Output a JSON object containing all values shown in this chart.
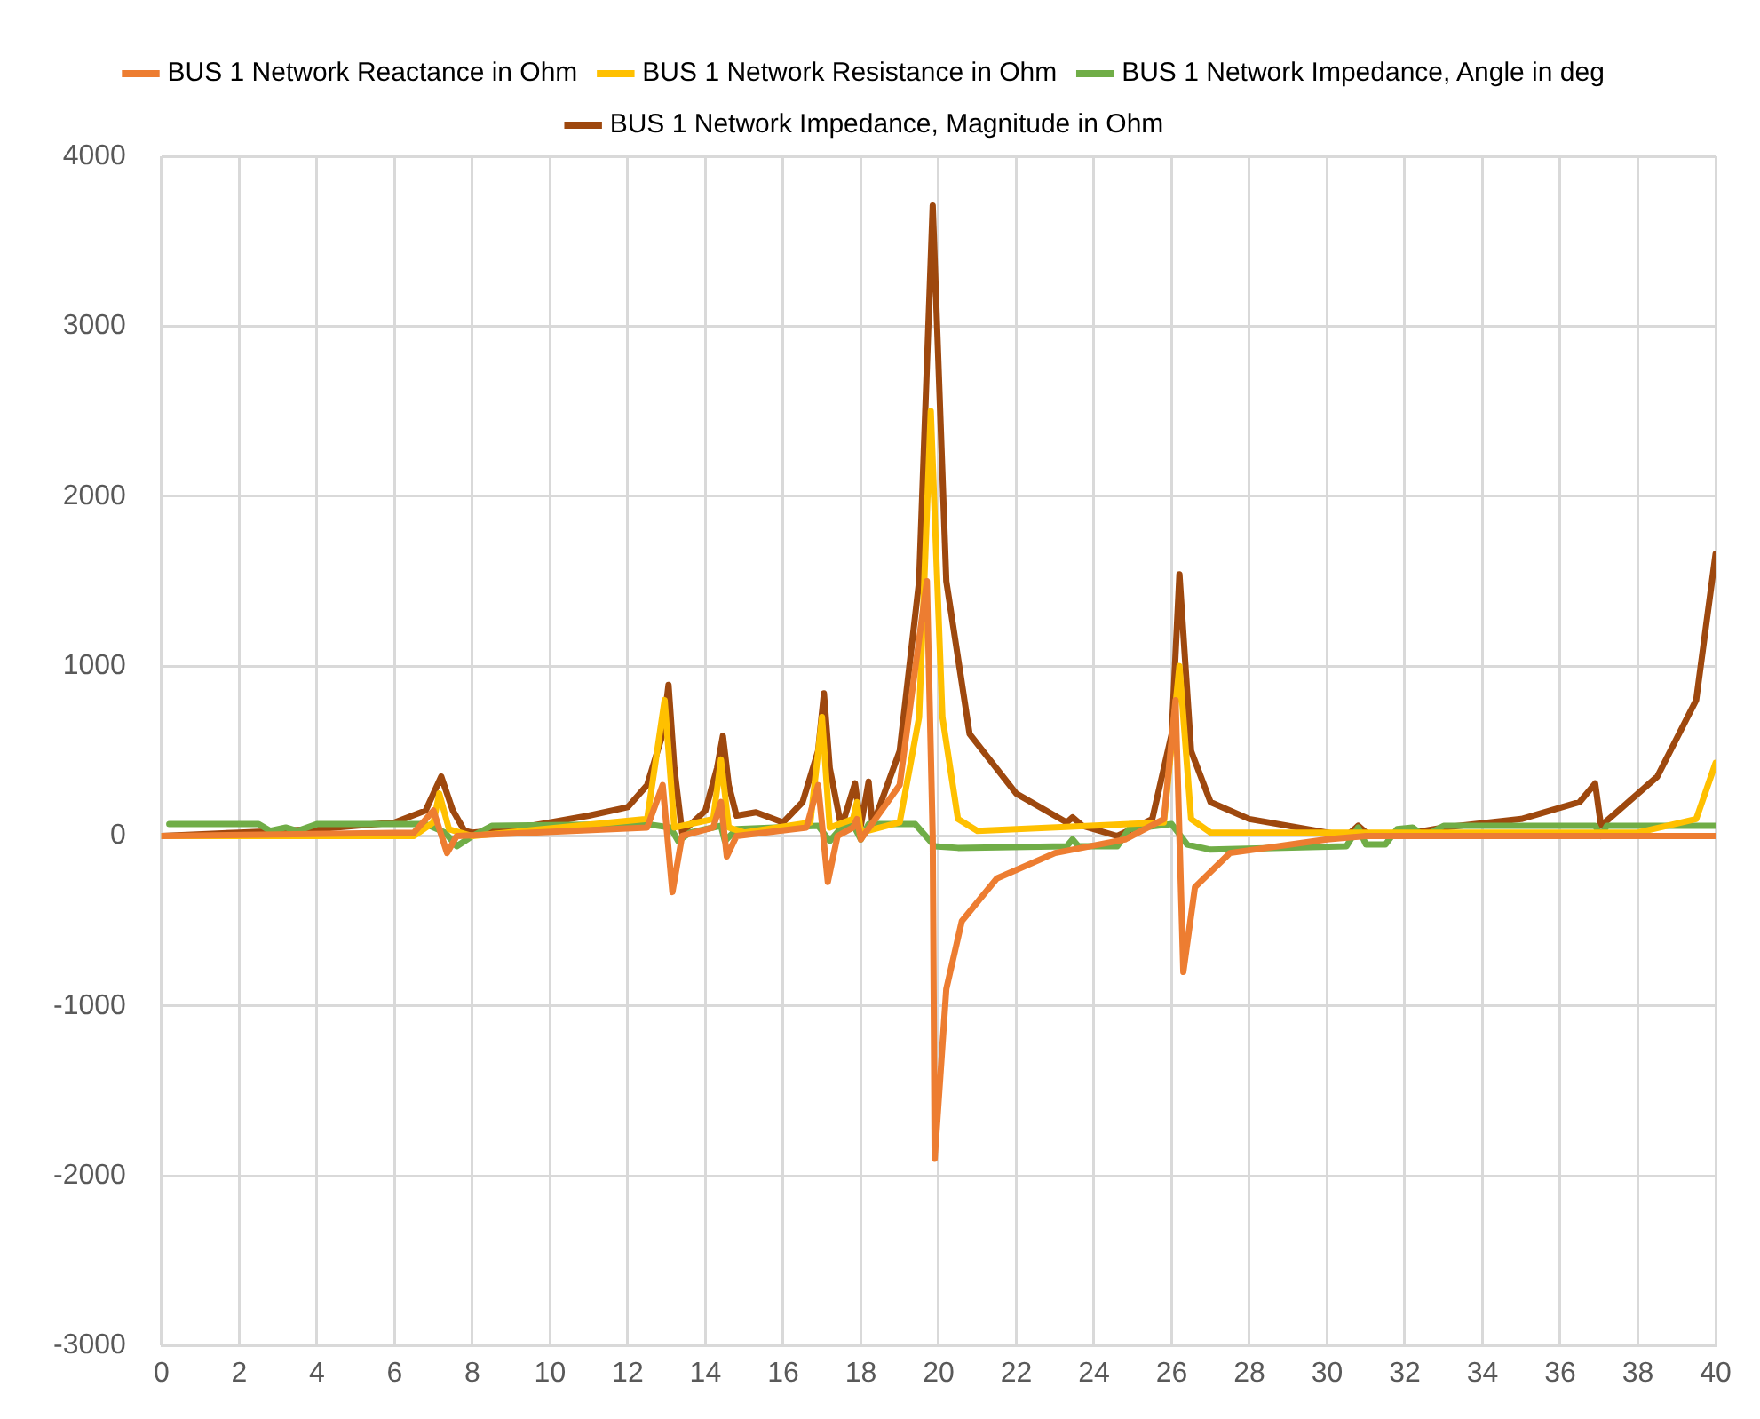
{
  "chart_data": {
    "type": "line",
    "xlim": [
      0,
      40
    ],
    "xticks": [
      0,
      2,
      4,
      6,
      8,
      10,
      12,
      14,
      16,
      18,
      20,
      22,
      24,
      26,
      28,
      30,
      32,
      34,
      36,
      38,
      40
    ],
    "ylim": [
      -3000,
      4000
    ],
    "yticks": [
      -3000,
      -2000,
      -1000,
      0,
      1000,
      2000,
      3000,
      4000
    ],
    "grid": true,
    "legend": "top",
    "marker": "none",
    "line_style": "solid",
    "series": [
      {
        "name": "BUS 1 Network Reactance in Ohm",
        "color": "#ed7d31",
        "x": [
          0,
          6.5,
          7.0,
          7.35,
          7.6,
          12.5,
          12.9,
          13.15,
          13.4,
          14.2,
          14.4,
          14.55,
          14.8,
          16.6,
          16.9,
          17.15,
          17.4,
          17.8,
          17.9,
          18.0,
          19.0,
          19.7,
          19.85,
          19.9,
          20.2,
          20.6,
          21.5,
          23,
          24.8,
          25.8,
          26.1,
          26.3,
          26.6,
          27.5,
          30,
          31,
          40
        ],
        "values": [
          0,
          20,
          150,
          -100,
          0,
          50,
          300,
          -330,
          0,
          50,
          200,
          -120,
          0,
          50,
          300,
          -270,
          0,
          50,
          100,
          -20,
          300,
          1500,
          0,
          -1900,
          -900,
          -500,
          -250,
          -100,
          -20,
          100,
          800,
          -800,
          -300,
          -100,
          -20,
          0,
          0
        ]
      },
      {
        "name": "BUS 1 Network Resistance in Ohm",
        "color": "#ffc000",
        "x": [
          0,
          6.5,
          7.0,
          7.15,
          7.4,
          8,
          12.5,
          12.95,
          13.2,
          14.2,
          14.4,
          14.6,
          15,
          16.7,
          17,
          17.2,
          17.8,
          17.9,
          18.0,
          19,
          19.5,
          19.8,
          20.1,
          20.5,
          21,
          25.8,
          26.2,
          26.5,
          27,
          38,
          39.5,
          40
        ],
        "values": [
          0,
          0,
          80,
          250,
          40,
          0,
          100,
          800,
          50,
          100,
          450,
          50,
          20,
          80,
          700,
          50,
          100,
          200,
          20,
          80,
          700,
          2500,
          700,
          100,
          30,
          80,
          1000,
          100,
          20,
          20,
          100,
          430
        ]
      },
      {
        "name": "BUS 1 Network Impedance, Angle in deg",
        "color": "#70ad47",
        "x": [
          0.2,
          2.5,
          2.8,
          3.2,
          3.5,
          4,
          6.8,
          7.3,
          7.6,
          8,
          8.5,
          12.5,
          13.1,
          13.3,
          13.6,
          14.4,
          14.5,
          14.8,
          16.9,
          17.2,
          17.5,
          17.8,
          18,
          18.2,
          19.4,
          19.9,
          20.5,
          23.3,
          23.45,
          23.6,
          24.6,
          24.9,
          26,
          26.4,
          27,
          30.5,
          30.8,
          31,
          31.5,
          31.8,
          32.2,
          32.5,
          33,
          36.9,
          37.05,
          37.2,
          40
        ],
        "values": [
          70,
          70,
          30,
          50,
          30,
          70,
          70,
          20,
          -60,
          0,
          60,
          70,
          50,
          -30,
          20,
          60,
          -30,
          40,
          60,
          -30,
          50,
          70,
          -20,
          70,
          70,
          -60,
          -70,
          -60,
          -20,
          -60,
          -60,
          40,
          70,
          -50,
          -80,
          -60,
          50,
          -50,
          -50,
          40,
          50,
          0,
          60,
          60,
          0,
          60,
          60
        ]
      },
      {
        "name": "BUS 1 Network Impedance, Magnitude in Ohm",
        "color": "#9e480e",
        "x": [
          0,
          2,
          4,
          6,
          6.8,
          7.2,
          7.5,
          7.8,
          8,
          9,
          10,
          11,
          11.8,
          12,
          12.5,
          12.9,
          13.05,
          13.2,
          13.4,
          14,
          14.3,
          14.45,
          14.6,
          14.8,
          15.3,
          16,
          16.5,
          16.9,
          17.05,
          17.2,
          17.5,
          17.85,
          18.0,
          18.2,
          18.3,
          19,
          19.5,
          19.85,
          20.2,
          20.8,
          22,
          23.3,
          23.45,
          23.7,
          24.6,
          25.5,
          26,
          26.2,
          26.5,
          27,
          28,
          30,
          30.5,
          30.8,
          31,
          31.2,
          32.5,
          33,
          35,
          36.5,
          36.9,
          37.05,
          37.5,
          38.5,
          39.5,
          40
        ],
        "values": [
          0,
          20,
          40,
          80,
          150,
          350,
          150,
          30,
          20,
          40,
          80,
          120,
          160,
          170,
          300,
          600,
          890,
          400,
          20,
          150,
          400,
          590,
          300,
          120,
          140,
          80,
          200,
          500,
          840,
          400,
          50,
          310,
          60,
          320,
          60,
          500,
          1500,
          3710,
          1500,
          600,
          250,
          80,
          110,
          60,
          0,
          100,
          600,
          1540,
          500,
          200,
          100,
          20,
          0,
          60,
          20,
          0,
          30,
          50,
          100,
          200,
          310,
          60,
          150,
          350,
          800,
          1660
        ]
      }
    ]
  }
}
